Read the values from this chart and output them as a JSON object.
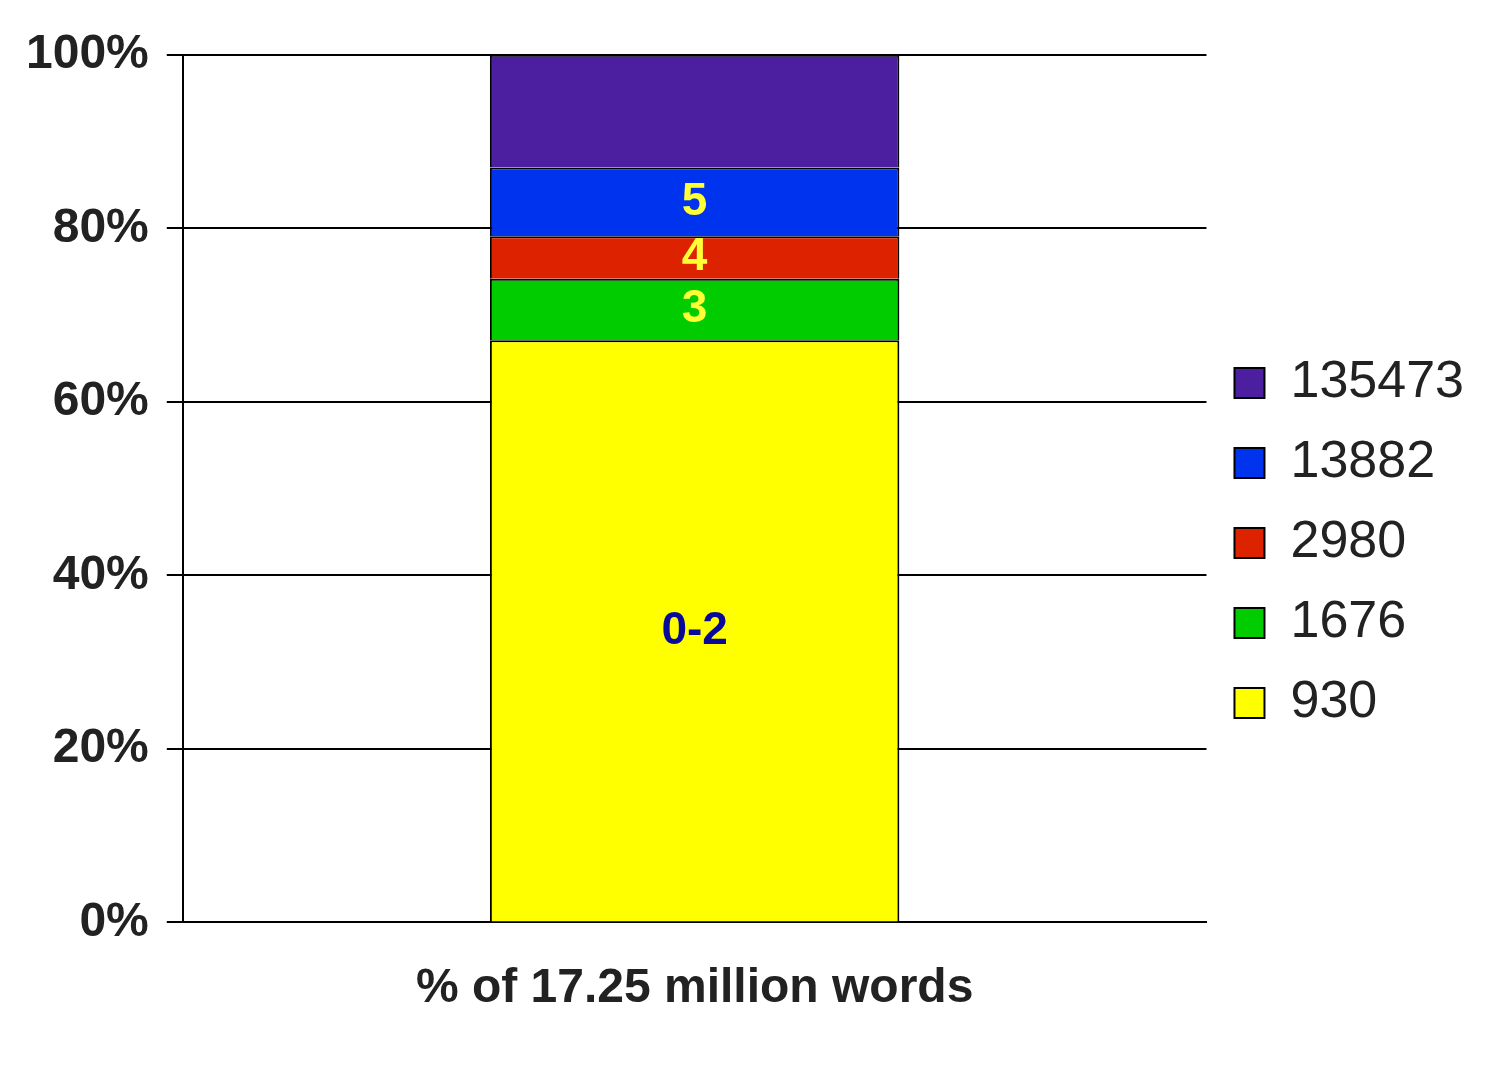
{
  "chart_data": {
    "type": "bar",
    "stacked": true,
    "categories": [
      "% of 17.25 million words"
    ],
    "series": [
      {
        "name": "930",
        "color": "#ffff00",
        "values": [
          67.1
        ]
      },
      {
        "name": "1676",
        "color": "#00cc00",
        "values": [
          7.1
        ]
      },
      {
        "name": "2980",
        "color": "#dd2200",
        "values": [
          4.9
        ]
      },
      {
        "name": "13882",
        "color": "#0033ee",
        "values": [
          7.9
        ]
      },
      {
        "name": "135473",
        "color": "#4b1fa0",
        "values": [
          13.0
        ]
      }
    ],
    "ylim": [
      0,
      100
    ],
    "yticks": [
      {
        "value": 0,
        "label": "0%"
      },
      {
        "value": 20,
        "label": "20%"
      },
      {
        "value": 40,
        "label": "40%"
      },
      {
        "value": 60,
        "label": "60%"
      },
      {
        "value": 80,
        "label": "80%"
      },
      {
        "value": 100,
        "label": "100%"
      }
    ],
    "grid": "y",
    "legend": "right",
    "annotations": [
      "0-2",
      "3",
      "4",
      "5"
    ]
  }
}
